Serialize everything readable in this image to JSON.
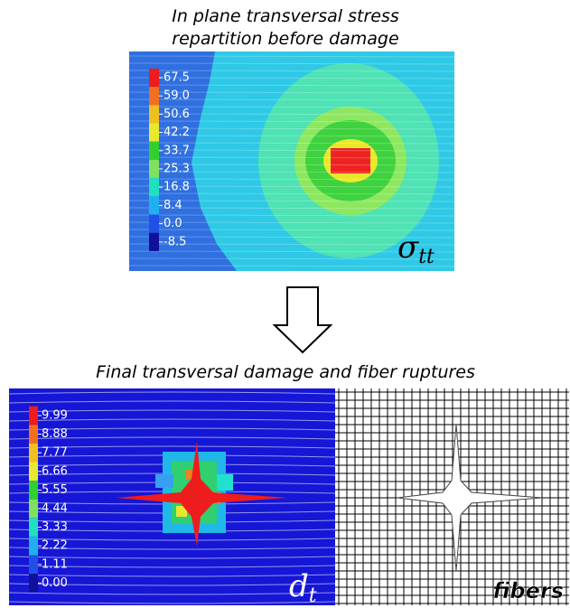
{
  "top": {
    "title": [
      "In plane transversal stress",
      "repartition before damage"
    ],
    "legend": [
      "67.5",
      "59.0",
      "50.6",
      "42.2",
      "33.7",
      "25.3",
      "16.8",
      "8.4",
      "0.0",
      "-8.5"
    ],
    "symbol": "σ",
    "subscript": "tt"
  },
  "bottom": {
    "title": "Final transversal damage and fiber ruptures",
    "legend": [
      "9.99",
      "8.88",
      "7.77",
      "6.66",
      "5.55",
      "4.44",
      "3.33",
      "2.22",
      "1.11",
      "0.00"
    ],
    "symbol": "d",
    "subscript": "t",
    "fibers_label": "fibers"
  }
}
